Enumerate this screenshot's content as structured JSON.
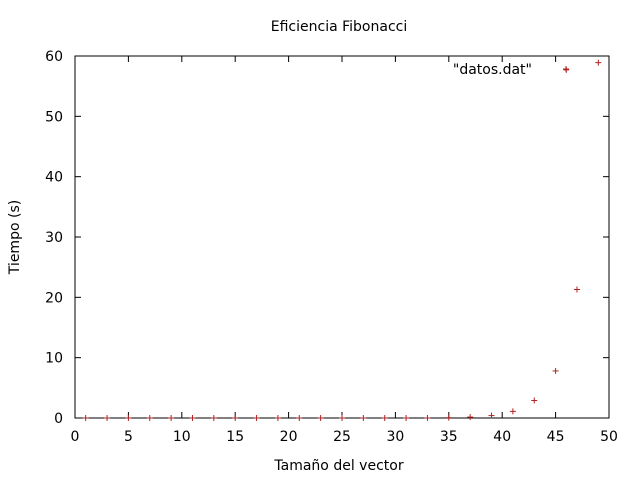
{
  "chart_data": {
    "type": "scatter",
    "title": "Eficiencia Fibonacci",
    "xlabel": "Tamaño del vector",
    "ylabel": "Tiempo (s)",
    "xlim": [
      0,
      50
    ],
    "ylim": [
      0,
      60
    ],
    "x_ticks": [
      0,
      5,
      10,
      15,
      20,
      25,
      30,
      35,
      40,
      45,
      50
    ],
    "y_ticks": [
      0,
      10,
      20,
      30,
      40,
      50,
      60
    ],
    "grid": false,
    "legend_position": "top-right",
    "marker": "+",
    "series": [
      {
        "name": "\"datos.dat\"",
        "color": "#b22222",
        "x": [
          1,
          3,
          5,
          7,
          9,
          11,
          13,
          15,
          17,
          19,
          21,
          23,
          25,
          27,
          29,
          31,
          33,
          35,
          37,
          39,
          41,
          43,
          45,
          46,
          47,
          49
        ],
        "y": [
          0,
          0,
          0,
          0,
          0,
          0,
          0,
          0,
          0,
          0,
          0,
          0,
          0,
          0,
          0,
          0,
          0,
          0.05,
          0.15,
          0.4,
          1.1,
          2.9,
          7.8,
          57.7,
          21.3,
          58.9
        ]
      }
    ]
  }
}
